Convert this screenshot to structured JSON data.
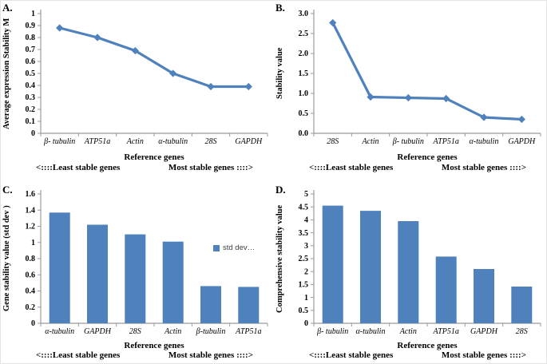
{
  "style": {
    "series_color": "#4F81BD",
    "axis_color": "#9b9b9b",
    "tick_text_color": "#000000",
    "legend_text_color": "#404040",
    "background": "#ffffff"
  },
  "chart_data": [
    {
      "panel": "A.",
      "type": "line",
      "title": "",
      "ylabel": "Average expression Stability M",
      "xlabel": "Reference genes",
      "footer_left": "<::::Least stable genes",
      "footer_right": "Most stable genes ::::>",
      "categories": [
        "β- tubulin",
        "ATP51a",
        "Actin",
        "α-tubulin",
        "28S",
        "GAPDH"
      ],
      "values": [
        0.88,
        0.8,
        0.69,
        0.5,
        0.39,
        0.39
      ],
      "ylim": [
        0,
        1
      ],
      "ytick_labels": [
        "0",
        "0.1",
        "0.2",
        "0.3",
        "0.4",
        "0.5",
        "0.6",
        "0.7",
        "0.8",
        "0.9",
        "1"
      ],
      "grid": false,
      "legend": null
    },
    {
      "panel": "B.",
      "type": "line",
      "title": "",
      "ylabel": "Stability value",
      "xlabel": "Reference genes",
      "footer_left": "<::::Least stable genes",
      "footer_right": "Most stable genes ::::>",
      "categories": [
        "28S",
        "Actin",
        "β- tubulin",
        "ATP51a",
        "α-tubulin",
        "GAPDH"
      ],
      "values": [
        2.77,
        0.91,
        0.89,
        0.87,
        0.4,
        0.35
      ],
      "ylim": [
        0,
        3
      ],
      "ytick_labels": [
        "0.0",
        "0.5",
        "1.0",
        "1.5",
        "2.0",
        "2.5",
        "3.0"
      ],
      "grid": false,
      "legend": null
    },
    {
      "panel": "C.",
      "type": "bar",
      "title": "",
      "ylabel": "Gene stability value (std dev )",
      "xlabel": "Reference genes",
      "footer_left": "<::::Least stable genes",
      "footer_right": "Most stable genes ::::>",
      "categories": [
        "α-tubulin",
        "GAPDH",
        "28S",
        "Actin",
        "β-tubulin",
        "ATP51a"
      ],
      "values": [
        1.37,
        1.22,
        1.1,
        1.01,
        0.46,
        0.45
      ],
      "ylim": [
        0,
        1.6
      ],
      "ytick_labels": [
        "0",
        "0.2",
        "0.4",
        "0.6",
        "0.8",
        "1",
        "1.2",
        "1.4",
        "1.6"
      ],
      "grid": false,
      "legend": "std dev…"
    },
    {
      "panel": "D.",
      "type": "bar",
      "title": "",
      "ylabel": "Comprehensive stability value",
      "xlabel": "Reference genes",
      "footer_left": "<::::Least stable genes",
      "footer_right": "Most stable genes ::::>",
      "categories": [
        "β- tubulin",
        "α-tubulin",
        "Actin",
        "ATP51a",
        "GAPDH",
        "28S"
      ],
      "values": [
        4.55,
        4.35,
        3.95,
        2.58,
        2.1,
        1.42
      ],
      "ylim": [
        0,
        5
      ],
      "ytick_labels": [
        "0",
        "0.5",
        "1",
        "1.5",
        "2",
        "2.5",
        "3",
        "3.5",
        "4",
        "4.5",
        "5"
      ],
      "grid": false,
      "legend": null
    }
  ]
}
